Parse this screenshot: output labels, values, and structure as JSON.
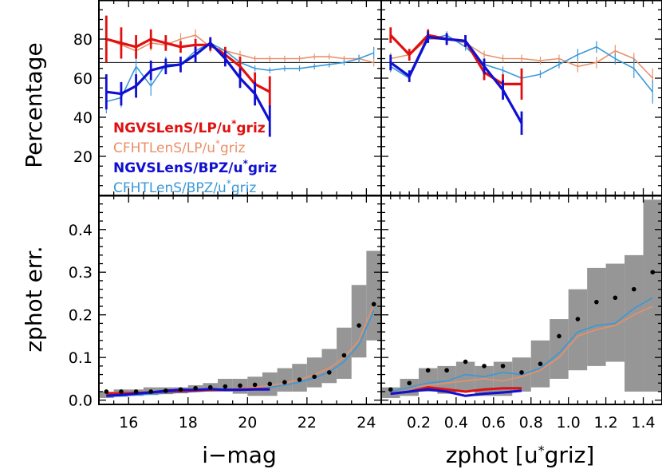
{
  "chart_data": [
    {
      "type": "line",
      "panel": "top-left",
      "ylabel": "Percentage",
      "xlim": [
        15,
        24.5
      ],
      "ylim": [
        0,
        100
      ],
      "y_ticks": [
        20,
        40,
        60,
        80
      ],
      "reference_line": 68,
      "legend": [
        {
          "label_main": "NGVSLenS/LP/u",
          "label_sup": "*",
          "label_end": "griz",
          "color": "#e01010",
          "weight": "bold"
        },
        {
          "label_main": "CFHTLenS/LP/u",
          "label_sup": "*",
          "label_end": "griz",
          "color": "#e8906a",
          "weight": "normal"
        },
        {
          "label_main": "NGVSLenS/BPZ/u",
          "label_sup": "*",
          "label_end": "griz",
          "color": "#1010d0",
          "weight": "bold"
        },
        {
          "label_main": "CFHTLenS/BPZ/u",
          "label_sup": "*",
          "label_end": "griz",
          "color": "#3a98d8",
          "weight": "normal"
        }
      ],
      "series": [
        {
          "name": "NGVSLenS/LP",
          "color": "#e01010",
          "width": 3.2,
          "x": [
            15.25,
            15.75,
            16.25,
            16.75,
            17.25,
            17.75,
            18.25,
            18.75,
            19.25,
            19.75,
            20.25,
            20.75
          ],
          "y": [
            80,
            78,
            76,
            80,
            78,
            76,
            77,
            77,
            72,
            66,
            57,
            53
          ],
          "err": [
            12,
            8,
            6,
            5,
            4,
            3,
            3,
            3,
            4,
            5,
            6,
            8
          ]
        },
        {
          "name": "CFHTLenS/LP",
          "color": "#e8906a",
          "width": 1.6,
          "x": [
            15.25,
            15.75,
            16.25,
            16.75,
            17.25,
            17.75,
            18.25,
            18.75,
            19.25,
            19.75,
            20.25,
            20.75,
            21.25,
            21.75,
            22.25,
            22.75,
            23.25,
            23.75,
            24.25
          ],
          "y": [
            80,
            77,
            74,
            78,
            77,
            80,
            82,
            76,
            74,
            72,
            70,
            70,
            70,
            70,
            71,
            71,
            70,
            70,
            68
          ],
          "err": [
            4,
            4,
            4,
            4,
            3,
            3,
            3,
            3,
            2,
            2,
            1.5,
            1.5,
            1.5,
            1.5,
            1.5,
            1.5,
            1.5,
            2,
            2
          ]
        },
        {
          "name": "NGVSLenS/BPZ",
          "color": "#1010d0",
          "width": 3.2,
          "x": [
            15.25,
            15.75,
            16.25,
            16.75,
            17.25,
            17.75,
            18.25,
            18.75,
            19.25,
            19.75,
            20.25,
            20.75
          ],
          "y": [
            53,
            52,
            56,
            64,
            66,
            67,
            72,
            78,
            70,
            60,
            52,
            38
          ],
          "err": [
            9,
            6,
            6,
            5,
            4,
            4,
            4,
            3,
            4,
            5,
            6,
            8
          ]
        },
        {
          "name": "CFHTLenS/BPZ",
          "color": "#3a98d8",
          "width": 1.6,
          "x": [
            15.25,
            15.75,
            16.25,
            16.75,
            17.25,
            17.75,
            18.25,
            18.75,
            19.25,
            19.75,
            20.25,
            20.75,
            21.25,
            21.75,
            22.25,
            22.75,
            23.25,
            23.75,
            24.25
          ],
          "y": [
            48,
            50,
            66,
            56,
            67,
            67,
            74,
            78,
            74,
            68,
            65,
            64,
            65,
            65,
            66,
            67,
            68,
            70,
            73
          ],
          "err": [
            6,
            5,
            6,
            5,
            4,
            3,
            3,
            3,
            2,
            2,
            1.5,
            1.5,
            1.5,
            1.5,
            1.5,
            1.5,
            1.5,
            2,
            3
          ]
        }
      ]
    },
    {
      "type": "line",
      "panel": "top-right",
      "xlim": [
        0,
        1.5
      ],
      "ylim": [
        0,
        100
      ],
      "reference_line": 68,
      "series": [
        {
          "name": "NGVSLenS/LP",
          "color": "#e01010",
          "width": 3.2,
          "x": [
            0.05,
            0.15,
            0.25,
            0.35,
            0.45,
            0.55,
            0.65,
            0.75
          ],
          "y": [
            82,
            72,
            82,
            80,
            79,
            63,
            57,
            57
          ],
          "err": [
            4,
            3,
            3,
            3,
            3,
            4,
            5,
            8
          ]
        },
        {
          "name": "CFHTLenS/LP",
          "color": "#e8906a",
          "width": 1.6,
          "x": [
            0.05,
            0.15,
            0.25,
            0.35,
            0.45,
            0.55,
            0.65,
            0.75,
            0.85,
            0.95,
            1.05,
            1.15,
            1.25,
            1.35,
            1.45
          ],
          "y": [
            70,
            72,
            80,
            80,
            78,
            72,
            70,
            70,
            69,
            70,
            66,
            68,
            74,
            70,
            60
          ],
          "err": [
            3,
            2,
            2,
            2,
            2,
            2,
            2,
            2,
            2,
            2,
            3,
            3,
            3,
            3,
            5
          ]
        },
        {
          "name": "NGVSLenS/BPZ",
          "color": "#1010d0",
          "width": 3.2,
          "x": [
            0.05,
            0.15,
            0.25,
            0.35,
            0.45,
            0.55,
            0.65,
            0.75
          ],
          "y": [
            68,
            61,
            81,
            80,
            79,
            66,
            54,
            37
          ],
          "err": [
            4,
            3,
            3,
            3,
            3,
            4,
            5,
            6
          ]
        },
        {
          "name": "CFHTLenS/BPZ",
          "color": "#3a98d8",
          "width": 1.6,
          "x": [
            0.05,
            0.15,
            0.25,
            0.35,
            0.45,
            0.55,
            0.65,
            0.75,
            0.85,
            0.95,
            1.05,
            1.15,
            1.25,
            1.35,
            1.45
          ],
          "y": [
            66,
            60,
            80,
            82,
            76,
            67,
            64,
            60,
            62,
            67,
            72,
            76,
            70,
            65,
            53
          ],
          "err": [
            3,
            2,
            2,
            2,
            2,
            2,
            2,
            2,
            2,
            2,
            3,
            3,
            3,
            5,
            6
          ]
        }
      ]
    },
    {
      "type": "line",
      "panel": "bottom-left",
      "xlabel": "i−mag",
      "ylabel": "zphot err.",
      "xlim": [
        15,
        24.5
      ],
      "ylim": [
        -0.01,
        0.48
      ],
      "x_ticks": [
        16,
        18,
        20,
        22,
        24
      ],
      "y_ticks": [
        0.0,
        0.1,
        0.2,
        0.3,
        0.4
      ],
      "band": {
        "x": [
          15.25,
          15.75,
          16.25,
          16.75,
          17.25,
          17.75,
          18.25,
          18.75,
          19.25,
          19.75,
          20.25,
          20.75,
          21.25,
          21.75,
          22.25,
          22.75,
          23.25,
          23.75,
          24.25
        ],
        "lo": [
          0.005,
          0.008,
          0.01,
          0.012,
          0.014,
          0.016,
          0.02,
          0.02,
          0.02,
          0.015,
          0.01,
          0.01,
          0.02,
          0.02,
          0.03,
          0.04,
          0.05,
          0.1,
          0.14
        ],
        "hi": [
          0.02,
          0.025,
          0.025,
          0.03,
          0.03,
          0.03,
          0.035,
          0.04,
          0.05,
          0.05,
          0.055,
          0.065,
          0.075,
          0.085,
          0.1,
          0.12,
          0.17,
          0.27,
          0.35
        ]
      },
      "points": {
        "x": [
          15.25,
          15.75,
          16.25,
          16.75,
          17.25,
          17.75,
          18.25,
          18.75,
          19.25,
          19.75,
          20.25,
          20.75,
          21.25,
          21.75,
          22.25,
          22.75,
          23.25,
          23.75,
          24.25
        ],
        "y": [
          0.02,
          0.02,
          0.02,
          0.02,
          0.022,
          0.025,
          0.028,
          0.03,
          0.032,
          0.034,
          0.036,
          0.038,
          0.042,
          0.048,
          0.055,
          0.065,
          0.105,
          0.175,
          0.225
        ]
      },
      "series": [
        {
          "name": "NGVSLenS/LP",
          "color": "#e01010",
          "width": 3,
          "x": [
            15.25,
            15.75,
            16.25,
            16.75,
            17.25,
            17.75,
            18.25,
            18.75,
            19.25,
            19.75,
            20.25,
            20.75
          ],
          "y": [
            0.015,
            0.016,
            0.017,
            0.018,
            0.02,
            0.021,
            0.022,
            0.024,
            0.024,
            0.025,
            0.026,
            0.026
          ]
        },
        {
          "name": "NGVSLenS/BPZ",
          "color": "#1010d0",
          "width": 3,
          "x": [
            15.25,
            15.75,
            16.25,
            16.75,
            17.25,
            17.75,
            18.25,
            18.75,
            19.25,
            19.75,
            20.25,
            20.75
          ],
          "y": [
            0.01,
            0.012,
            0.015,
            0.018,
            0.022,
            0.024,
            0.024,
            0.026,
            0.024,
            0.024,
            0.025,
            0.025
          ]
        },
        {
          "name": "CFHTLenS/LP",
          "color": "#e8906a",
          "width": 1.6,
          "x": [
            15.25,
            15.75,
            16.25,
            16.75,
            17.25,
            17.75,
            18.25,
            18.75,
            19.25,
            19.75,
            20.25,
            20.75,
            21.25,
            21.75,
            22.25,
            22.75,
            23.25,
            23.75,
            24.25
          ],
          "y": [
            0.012,
            0.014,
            0.016,
            0.018,
            0.02,
            0.021,
            0.022,
            0.023,
            0.025,
            0.027,
            0.03,
            0.034,
            0.04,
            0.048,
            0.06,
            0.075,
            0.1,
            0.14,
            0.225
          ]
        },
        {
          "name": "CFHTLenS/BPZ",
          "color": "#3a98d8",
          "width": 1.6,
          "x": [
            15.25,
            15.75,
            16.25,
            16.75,
            17.25,
            17.75,
            18.25,
            18.75,
            19.25,
            19.75,
            20.25,
            20.75,
            21.25,
            21.75,
            22.25,
            22.75,
            23.25,
            23.75,
            24.25
          ],
          "y": [
            0.008,
            0.01,
            0.012,
            0.014,
            0.016,
            0.018,
            0.02,
            0.022,
            0.023,
            0.025,
            0.027,
            0.03,
            0.035,
            0.042,
            0.052,
            0.066,
            0.09,
            0.13,
            0.21
          ]
        }
      ]
    },
    {
      "type": "line",
      "panel": "bottom-right",
      "xlabel_main": "zphot [u",
      "xlabel_sup": "*",
      "xlabel_end": "griz]",
      "xlim": [
        0,
        1.5
      ],
      "ylim": [
        -0.01,
        0.48
      ],
      "x_ticks": [
        0.2,
        0.4,
        0.6,
        0.8,
        1.0,
        1.2,
        1.4
      ],
      "band": {
        "x": [
          0.05,
          0.15,
          0.25,
          0.35,
          0.45,
          0.55,
          0.65,
          0.75,
          0.85,
          0.95,
          1.05,
          1.15,
          1.25,
          1.35,
          1.45
        ],
        "lo": [
          0.005,
          0.01,
          0.02,
          0.015,
          0.02,
          0.01,
          0.01,
          0.02,
          0.03,
          0.05,
          0.07,
          0.08,
          0.09,
          0.02,
          0.02
        ],
        "hi": [
          0.03,
          0.05,
          0.075,
          0.08,
          0.09,
          0.08,
          0.09,
          0.1,
          0.14,
          0.19,
          0.26,
          0.31,
          0.32,
          0.34,
          0.47
        ]
      },
      "points": {
        "x": [
          0.05,
          0.15,
          0.25,
          0.35,
          0.45,
          0.55,
          0.65,
          0.75,
          0.85,
          0.95,
          1.05,
          1.15,
          1.25,
          1.35,
          1.45
        ],
        "y": [
          0.025,
          0.04,
          0.07,
          0.07,
          0.09,
          0.08,
          0.08,
          0.065,
          0.085,
          0.15,
          0.19,
          0.23,
          0.24,
          0.26,
          0.3
        ]
      },
      "series": [
        {
          "name": "NGVSLenS/LP",
          "color": "#e01010",
          "width": 3,
          "x": [
            0.05,
            0.15,
            0.25,
            0.35,
            0.45,
            0.55,
            0.65,
            0.75
          ],
          "y": [
            0.015,
            0.02,
            0.03,
            0.025,
            0.02,
            0.025,
            0.028,
            0.028
          ]
        },
        {
          "name": "NGVSLenS/BPZ",
          "color": "#1010d0",
          "width": 3,
          "x": [
            0.05,
            0.15,
            0.25,
            0.35,
            0.45,
            0.55,
            0.65,
            0.75
          ],
          "y": [
            0.015,
            0.02,
            0.025,
            0.02,
            0.01,
            0.015,
            0.018,
            0.022
          ]
        },
        {
          "name": "CFHTLenS/LP",
          "color": "#e8906a",
          "width": 1.6,
          "x": [
            0.05,
            0.15,
            0.25,
            0.35,
            0.45,
            0.55,
            0.65,
            0.75,
            0.85,
            0.95,
            1.05,
            1.15,
            1.25,
            1.35,
            1.45
          ],
          "y": [
            0.02,
            0.03,
            0.035,
            0.04,
            0.045,
            0.05,
            0.045,
            0.055,
            0.07,
            0.1,
            0.15,
            0.165,
            0.175,
            0.2,
            0.22
          ]
        },
        {
          "name": "CFHTLenS/BPZ",
          "color": "#3a98d8",
          "width": 1.6,
          "x": [
            0.05,
            0.15,
            0.25,
            0.35,
            0.45,
            0.55,
            0.65,
            0.75,
            0.85,
            0.95,
            1.05,
            1.15,
            1.25,
            1.35,
            1.45
          ],
          "y": [
            0.02,
            0.03,
            0.04,
            0.045,
            0.06,
            0.055,
            0.065,
            0.06,
            0.075,
            0.11,
            0.16,
            0.175,
            0.18,
            0.215,
            0.24
          ]
        }
      ]
    }
  ]
}
